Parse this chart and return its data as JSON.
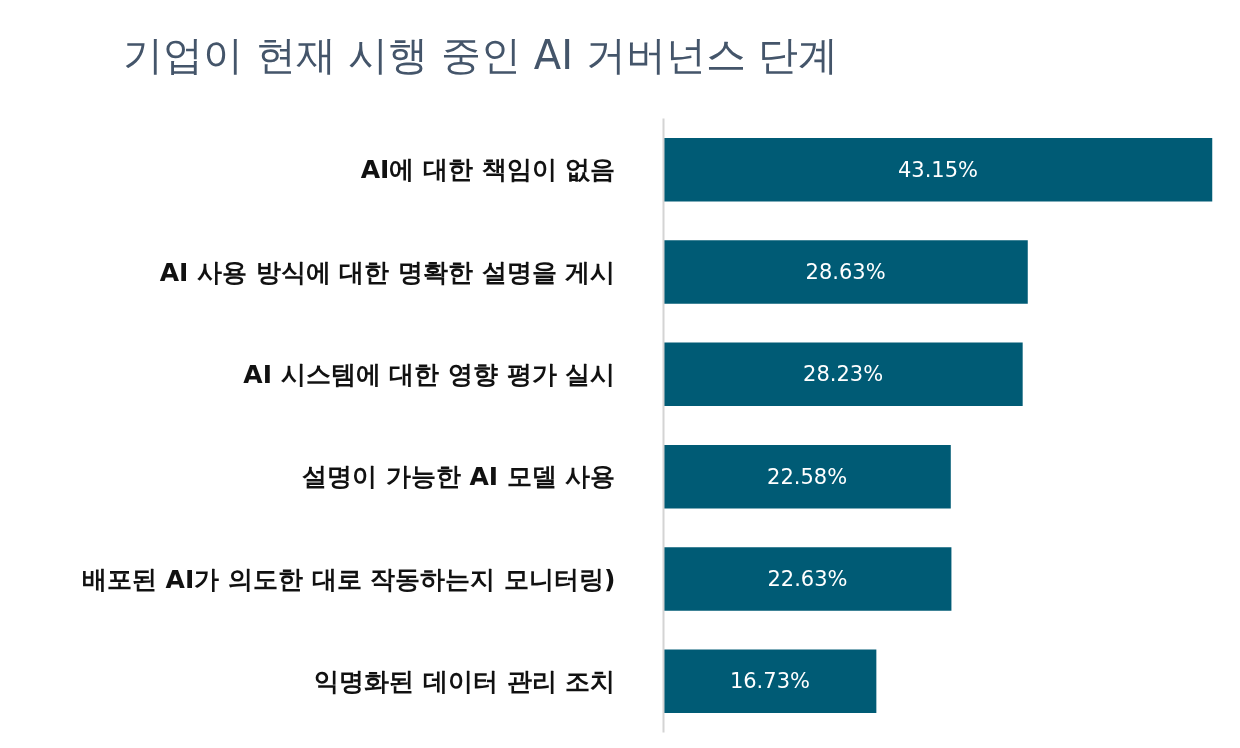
{
  "chart_data": {
    "type": "bar",
    "orientation": "horizontal",
    "title": "기업이 현재 시행 중인 AI 거버넌스 단계",
    "categories": [
      "AI에 대한 책임이 없음",
      "AI 사용 방식에 대한 명확한 설명을 게시",
      "AI 시스템에 대한 영향 평가 실시",
      "설명이 가능한 AI 모델 사용",
      "배포된 AI가 의도한 대로 작동하는지 모니터링)",
      "익명화된 데이터 관리 조치"
    ],
    "values": [
      43.15,
      28.63,
      28.23,
      22.58,
      22.63,
      16.73
    ],
    "value_labels": [
      "43.15%",
      "28.63%",
      "28.23%",
      "22.58%",
      "22.63%",
      "16.73%"
    ],
    "color": "#005b75",
    "grid": false
  }
}
